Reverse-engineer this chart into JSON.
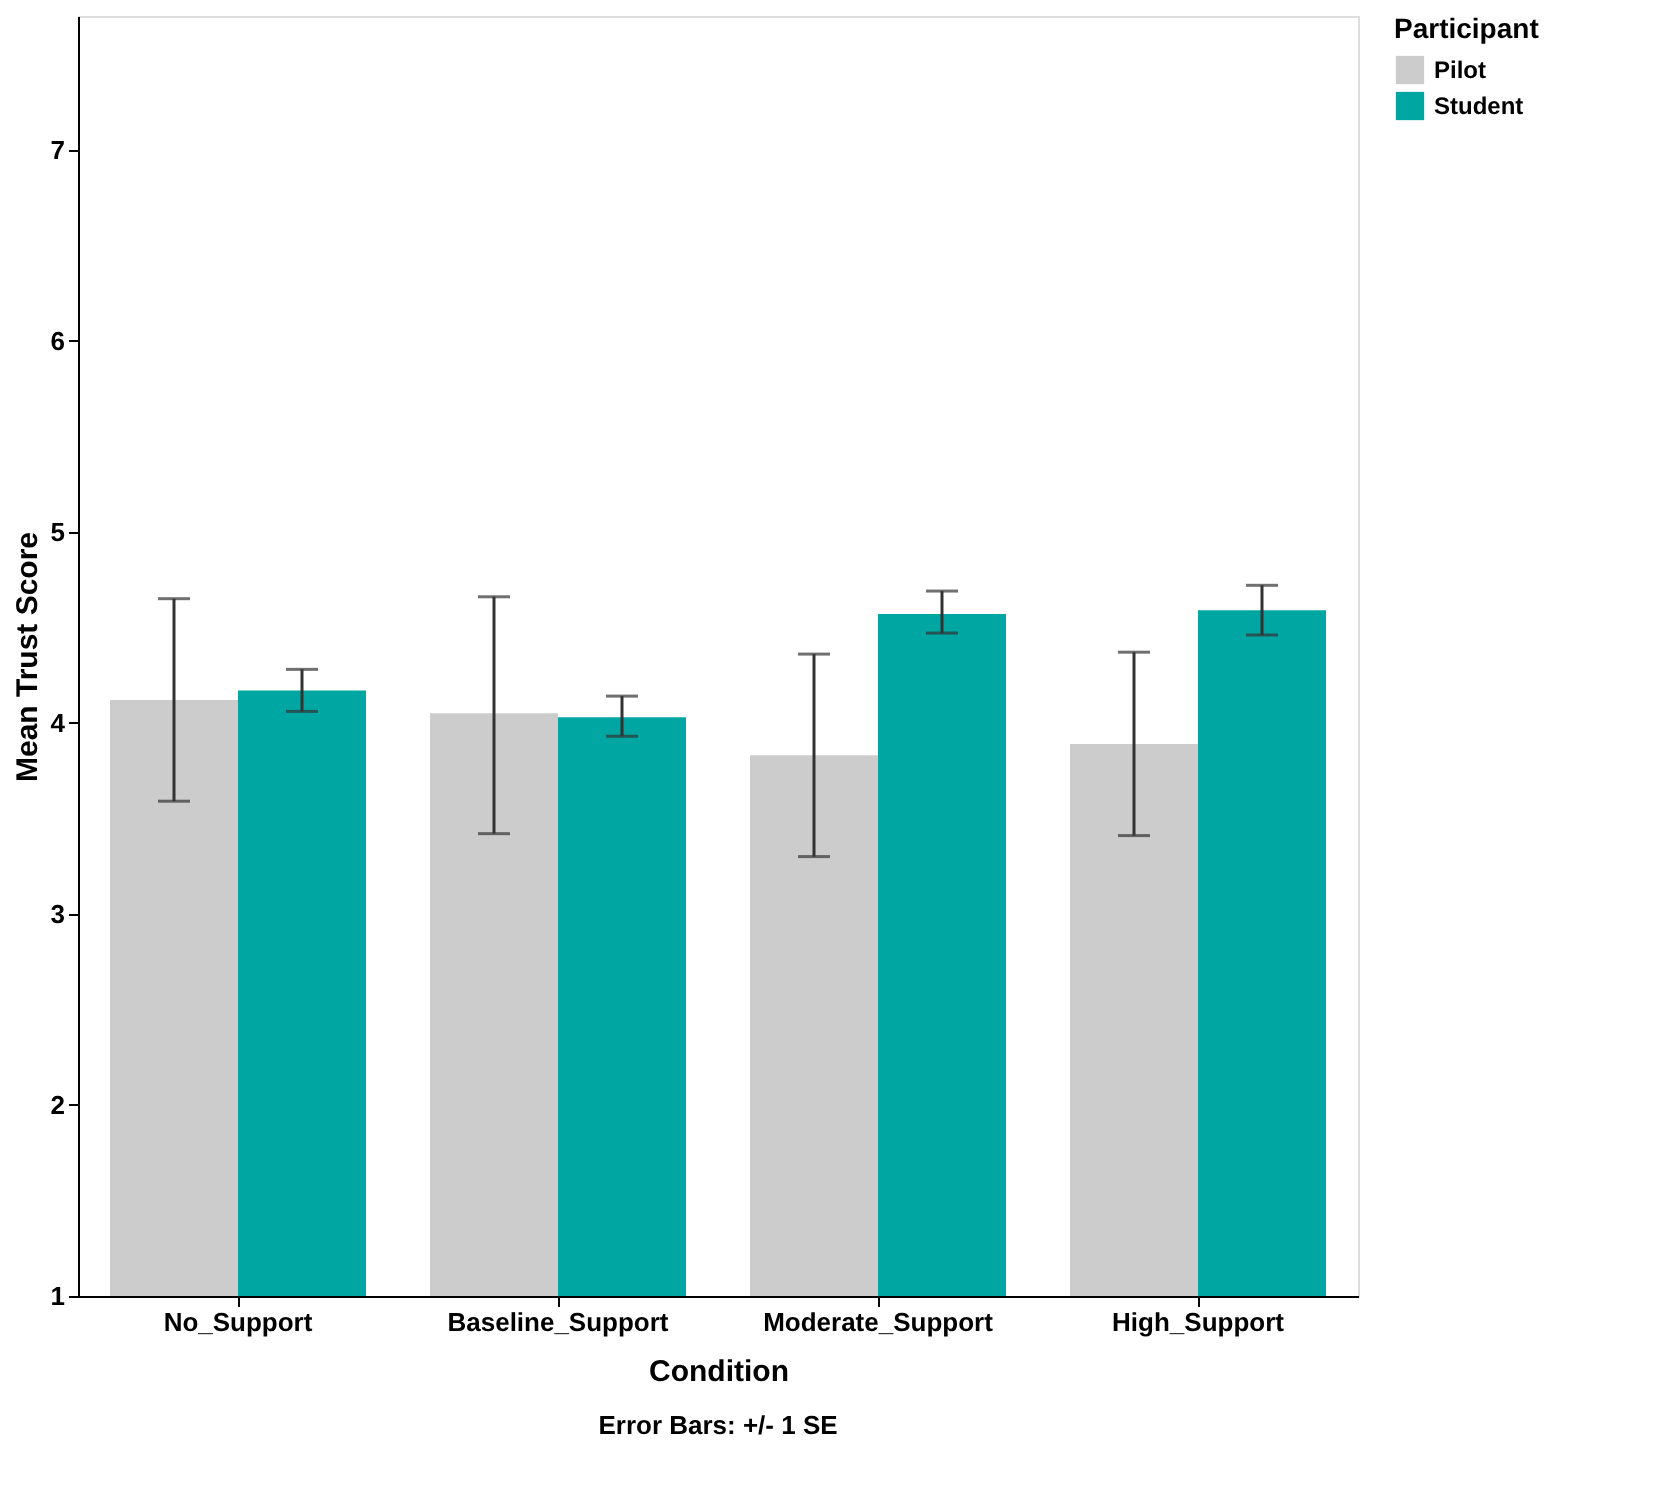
{
  "chart_data": {
    "type": "bar",
    "categories": [
      "No_Support",
      "Baseline_Support",
      "Moderate_Support",
      "High_Support"
    ],
    "series": [
      {
        "name": "Pilot",
        "color": "#cccccc",
        "values": [
          4.12,
          4.05,
          3.83,
          3.89
        ],
        "errors": [
          [
            3.59,
            4.65
          ],
          [
            3.42,
            4.66
          ],
          [
            3.3,
            4.36
          ],
          [
            3.41,
            4.37
          ]
        ]
      },
      {
        "name": "Student",
        "color": "#00a6a2",
        "values": [
          4.17,
          4.03,
          4.57,
          4.59
        ],
        "errors": [
          [
            4.06,
            4.28
          ],
          [
            3.93,
            4.14
          ],
          [
            4.47,
            4.69
          ],
          [
            4.46,
            4.72
          ]
        ]
      }
    ],
    "xlabel": "Condition",
    "ylabel": "Mean Trust Score",
    "legend_title": "Participant",
    "ylim": [
      1,
      7.7
    ],
    "yticks": [
      1,
      2,
      3,
      4,
      5,
      6,
      7
    ],
    "grid": false,
    "legend": "top right",
    "annotations": [
      "Error Bars: +/- 1 SE"
    ]
  }
}
